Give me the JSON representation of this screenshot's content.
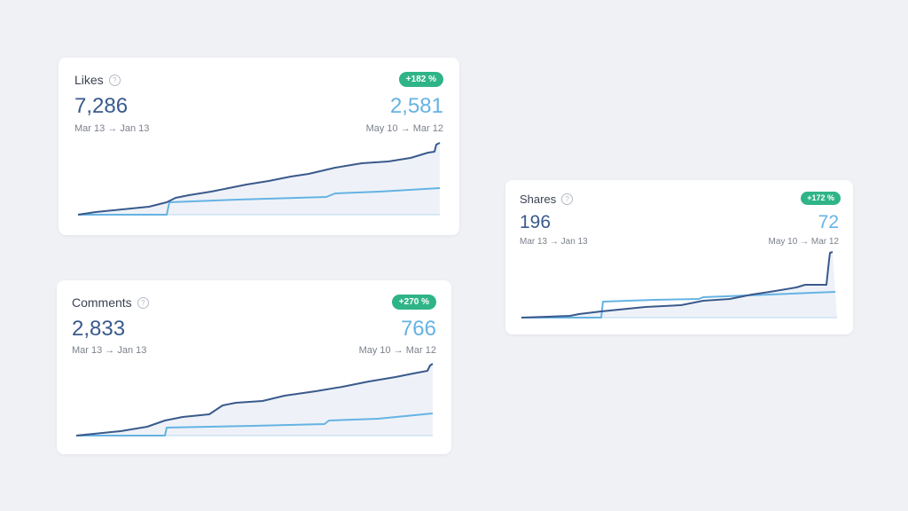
{
  "colors": {
    "current": "#3a5a8c",
    "previous": "#65b3e3",
    "badge": "#2fb488",
    "fill": "#eef2f8"
  },
  "help_icon": "?",
  "cards": {
    "likes": {
      "title": "Likes",
      "badge": "+182 %",
      "current_value": "7,286",
      "previous_value": "2,581",
      "current_range": "Mar 13 → Jan 13",
      "previous_range": "May 10 → Mar 12"
    },
    "comments": {
      "title": "Comments",
      "badge": "+270 %",
      "current_value": "2,833",
      "previous_value": "766",
      "current_range": "Mar 13 → Jan 13",
      "previous_range": "May 10 → Mar 12"
    },
    "shares": {
      "title": "Shares",
      "badge": "+172 %",
      "current_value": "196",
      "previous_value": "72",
      "current_range": "Mar 13 → Jan 13",
      "previous_range": "May 10 → Mar 12"
    }
  }
}
